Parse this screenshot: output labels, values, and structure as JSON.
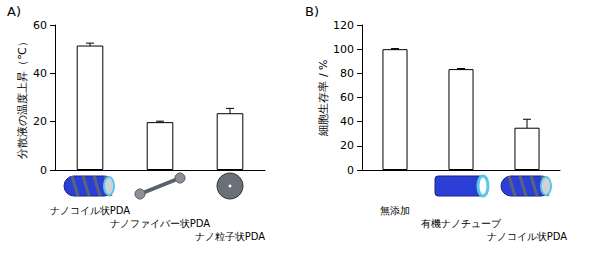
{
  "chart_data": [
    {
      "type": "bar",
      "title": "A)",
      "y_label": "分散液の温度上昇（℃）",
      "categories": [
        "ナノコイル状PDA",
        "ナノファイバー状PDA",
        "ナノ粒子状PDA"
      ],
      "values": [
        51.5,
        19.8,
        23.5
      ],
      "errors": [
        1.0,
        0.4,
        2.0
      ],
      "color": "#ffffff",
      "ylim": [
        0,
        60
      ],
      "yticks": [
        0,
        20,
        40,
        60
      ],
      "grid": false
    },
    {
      "type": "bar",
      "title": "B)",
      "y_label": "細胞生存率 / %",
      "categories": [
        "無添加",
        "有機ナノチューブ",
        "ナノコイル状PDA"
      ],
      "values": [
        100,
        83.5,
        35
      ],
      "errors": [
        0.5,
        0.5,
        7
      ],
      "color": "#ffffff",
      "ylim": [
        0,
        120
      ],
      "yticks": [
        0,
        20,
        40,
        60,
        80,
        100,
        120
      ],
      "grid": false
    }
  ]
}
